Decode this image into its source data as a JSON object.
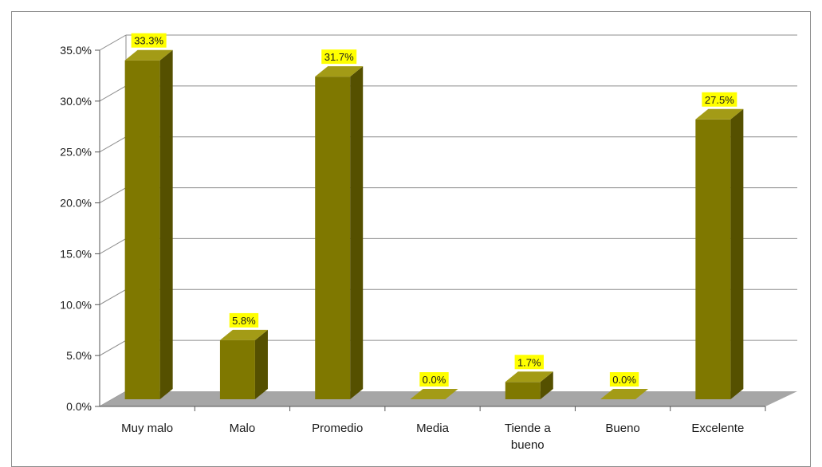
{
  "chart_data": {
    "type": "bar",
    "title": "",
    "xlabel": "",
    "ylabel": "",
    "categories": [
      "Muy malo",
      "Malo",
      "Promedio",
      "Media",
      "Tiende a bueno",
      "Bueno",
      "Excelente"
    ],
    "category_lines": [
      [
        "Muy malo"
      ],
      [
        "Malo"
      ],
      [
        "Promedio"
      ],
      [
        "Media"
      ],
      [
        "Tiende a",
        "bueno"
      ],
      [
        "Bueno"
      ],
      [
        "Excelente"
      ]
    ],
    "values": [
      33.3,
      5.8,
      31.7,
      0.0,
      1.7,
      0.0,
      27.5
    ],
    "data_labels": [
      "33.3%",
      "5.8%",
      "31.7%",
      "0.0%",
      "1.7%",
      "0.0%",
      "27.5%"
    ],
    "yticks": [
      "0.0%",
      "5.0%",
      "10.0%",
      "15.0%",
      "20.0%",
      "25.0%",
      "30.0%",
      "35.0%"
    ],
    "ylim": [
      0,
      35
    ],
    "grid": true,
    "legend": "none",
    "three_d": true,
    "colors": {
      "bar_front": "#7f7800",
      "bar_side": "#555000",
      "bar_top": "#a39b16",
      "floor": "#a6a6a6",
      "label_bg": "#ffff00",
      "grid": "#8c8c8c"
    }
  }
}
